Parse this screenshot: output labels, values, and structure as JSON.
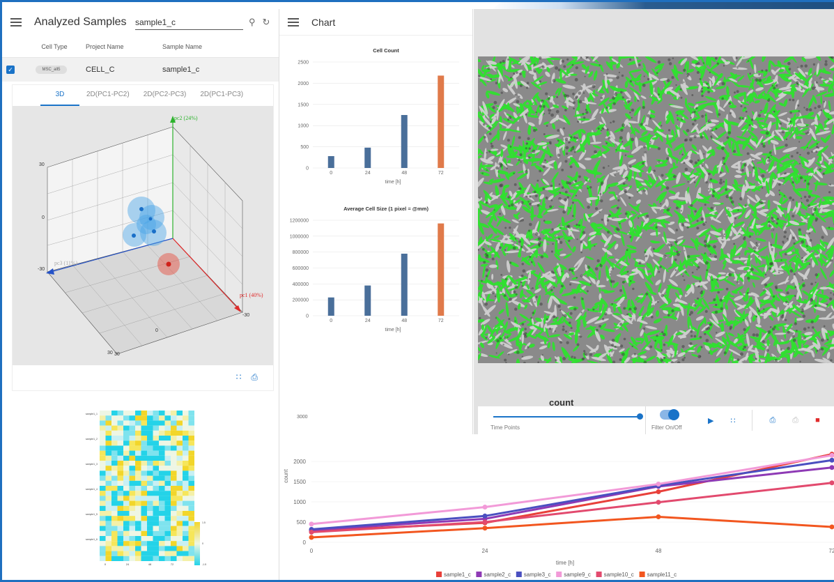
{
  "left_panel": {
    "title": "Analyzed Samples",
    "search_value": "sample1_c",
    "columns": [
      "Cell Type",
      "Project Name",
      "Sample Name"
    ],
    "rows": [
      {
        "cell_type": "MSC_all5",
        "project": "CELL_C",
        "sample": "sample1_c",
        "checked": true
      }
    ],
    "tabs": [
      "3D",
      "2D(PC1-PC2)",
      "2D(PC2-PC3)",
      "2D(PC1-PC3)"
    ],
    "active_tab": "3D",
    "axis_labels": {
      "pc1": "pc1 (40%)",
      "pc2": "pc2 (24%)",
      "pc3": "pc3 (11%)"
    },
    "tick_labels": {
      "top_left": "30",
      "mid_left": "0",
      "left_low": "-30",
      "bottom_a": "30",
      "bottom_b": "30",
      "bottom_mid": "0",
      "right": "-30"
    },
    "heatmap_rows": [
      "sample1_1",
      "sample1_2",
      "sample1_3",
      "sample1_4",
      "sample1_5",
      "sample1_6"
    ],
    "heatmap_cols": [
      "0",
      "24",
      "48",
      "72"
    ],
    "heatmap_scale": [
      "-1.5",
      "0",
      "1.5"
    ]
  },
  "middle_panel": {
    "title": "Chart",
    "y_ticks_partial": [
      "3000",
      "2500"
    ]
  },
  "right_panel": {
    "image_title": "count",
    "time_points_label": "Time Points",
    "filter_label": "Filter On/Off",
    "slider_fraction": 1.0
  },
  "chart_data": [
    {
      "type": "bar",
      "title": "Cell Count",
      "xlabel": "time [h]",
      "ylabel": "",
      "categories": [
        "0",
        "24",
        "48",
        "72"
      ],
      "values": [
        280,
        480,
        1250,
        2180
      ],
      "colors": [
        "#4a6f9a",
        "#4a6f9a",
        "#4a6f9a",
        "#e07a4a"
      ],
      "ylim": [
        0,
        2500
      ],
      "yticks": [
        0,
        500,
        1000,
        1500,
        2000,
        2500
      ]
    },
    {
      "type": "bar",
      "title": "Average Cell Size (1 pixel = @mm)",
      "xlabel": "time [h]",
      "ylabel": "",
      "categories": [
        "0",
        "24",
        "48",
        "72"
      ],
      "values": [
        230000,
        380000,
        780000,
        1160000
      ],
      "colors": [
        "#4a6f9a",
        "#4a6f9a",
        "#4a6f9a",
        "#e07a4a"
      ],
      "ylim": [
        0,
        1200000
      ],
      "yticks": [
        0,
        200000,
        400000,
        600000,
        800000,
        1000000,
        1200000
      ]
    },
    {
      "type": "line",
      "title": "",
      "xlabel": "time [h]",
      "ylabel": "count",
      "x": [
        0,
        24,
        48,
        72
      ],
      "xticks": [
        "0",
        "24",
        "48",
        "72"
      ],
      "ylim": [
        0,
        2500
      ],
      "yticks": [
        0,
        500,
        1000,
        1500,
        2000
      ],
      "series": [
        {
          "name": "sample1_c",
          "color": "#e8403a",
          "values": [
            280,
            480,
            1250,
            2180
          ]
        },
        {
          "name": "sample2_c",
          "color": "#8e3ab5",
          "values": [
            300,
            580,
            1380,
            1850
          ]
        },
        {
          "name": "sample3_c",
          "color": "#4a4fc0",
          "values": [
            320,
            650,
            1400,
            2030
          ]
        },
        {
          "name": "sample9_c",
          "color": "#f29ad8",
          "values": [
            450,
            870,
            1440,
            2150
          ]
        },
        {
          "name": "sample10_c",
          "color": "#e24a6e",
          "values": [
            250,
            500,
            990,
            1470
          ]
        },
        {
          "name": "sample11_c",
          "color": "#f2561f",
          "values": [
            120,
            350,
            630,
            380
          ]
        }
      ]
    }
  ]
}
